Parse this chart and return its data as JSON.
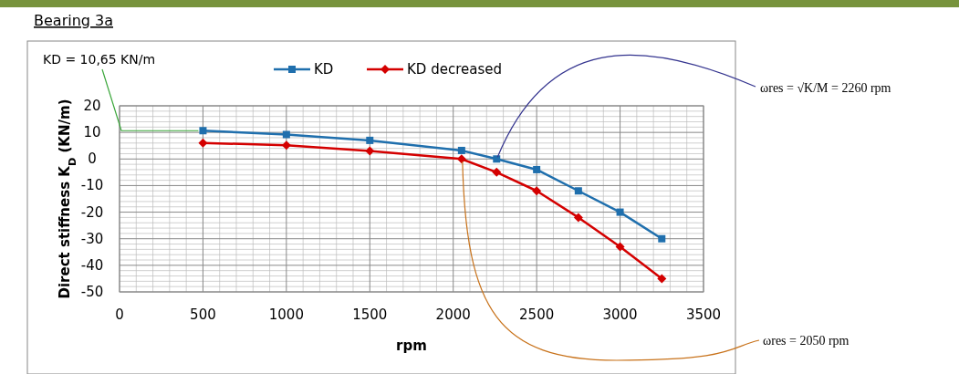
{
  "chart_data": {
    "type": "line",
    "title": "Bearing 3a",
    "xlabel": "rpm",
    "ylabel": "Direct stiffness K$_{D}$ (KN/m)",
    "xlim": [
      0,
      3500
    ],
    "xticks": [
      0,
      500,
      1000,
      1500,
      2000,
      2500,
      3000,
      3500
    ],
    "ylim": [
      -50,
      20
    ],
    "yticks": [
      -50,
      -40,
      -30,
      -20,
      -10,
      0,
      10,
      20
    ],
    "grid": true,
    "legend": "top",
    "line_style": "solid",
    "series": [
      {
        "name": "KD",
        "color": "#1f6fad",
        "marker": "square",
        "x": [
          500,
          1000,
          1500,
          2050,
          2260,
          2500,
          2750,
          3000,
          3250
        ],
        "values": [
          10.65,
          9.2,
          7,
          3.2,
          0,
          -4,
          -12,
          -20,
          -30
        ]
      },
      {
        "name": "KD decreased",
        "color": "#d40000",
        "marker": "diamond",
        "x": [
          500,
          1000,
          1500,
          2050,
          2260,
          2500,
          2750,
          3000,
          3250
        ],
        "values": [
          6,
          5.2,
          3,
          0,
          -5,
          -12,
          -22,
          -33,
          -45
        ]
      }
    ],
    "annotations": [
      {
        "text": "KD = 10,65 KN/m",
        "x": 500,
        "y": 10.65
      },
      {
        "text": "ωres = √K/M = 2260 rpm",
        "x": 2260,
        "y": 0
      },
      {
        "text": "ωres = 2050 rpm",
        "x": 2050,
        "y": 0
      }
    ]
  }
}
